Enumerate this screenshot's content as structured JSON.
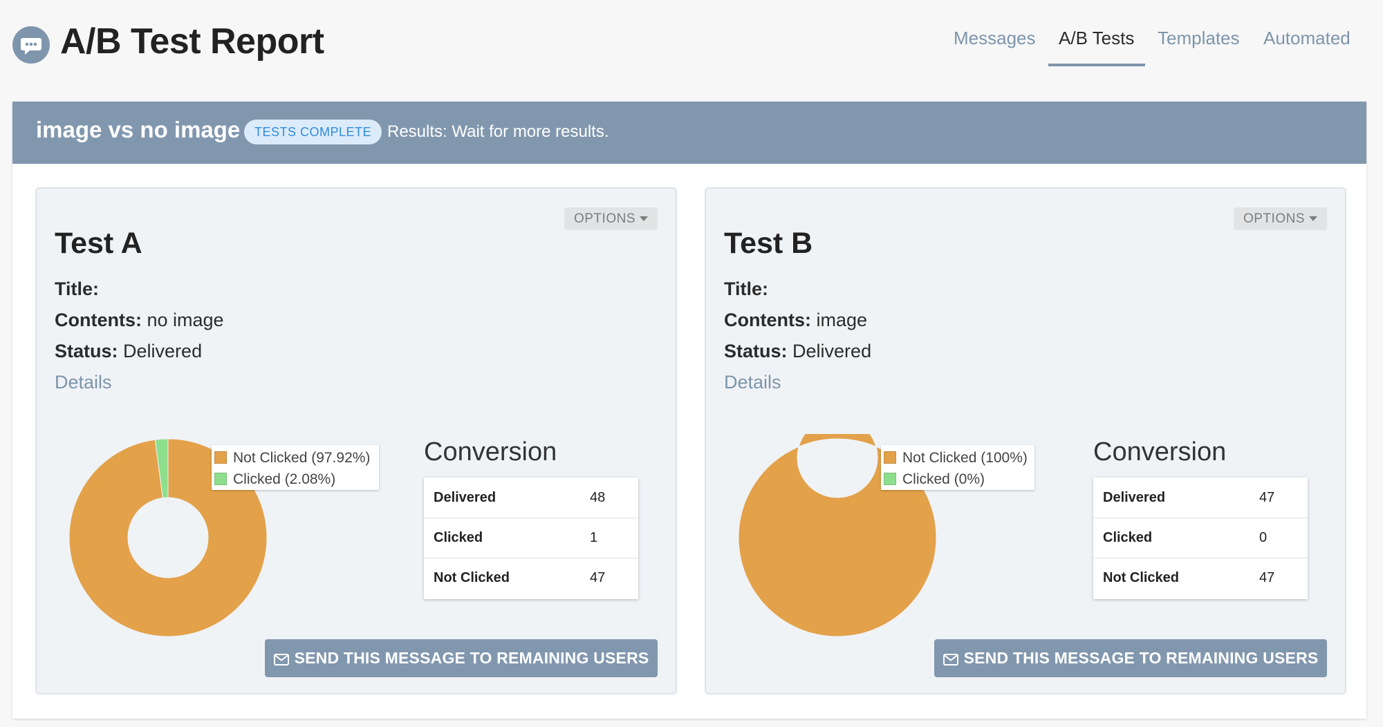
{
  "header": {
    "logo_icon": "chat-bubble-icon",
    "title": "A/B Test Report",
    "nav": [
      {
        "label": "Messages",
        "active": false
      },
      {
        "label": "A/B Tests",
        "active": true
      },
      {
        "label": "Templates",
        "active": false
      },
      {
        "label": "Automated",
        "active": false
      }
    ]
  },
  "test": {
    "name": "image vs no image",
    "status": "TESTS COMPLETE",
    "results": "Results: Wait for more results."
  },
  "variants": [
    {
      "title": "Test A",
      "options_label": "OPTIONS",
      "fields": {
        "title_label": "Title:",
        "title_value": "",
        "contents_label": "Contents:",
        "contents_value": "no image",
        "status_label": "Status:",
        "status_value": "Delivered"
      },
      "details_label": "Details",
      "chart_data": {
        "type": "pie",
        "categories": [
          "Not Clicked",
          "Clicked"
        ],
        "values": [
          47,
          1
        ],
        "legend": [
          "Not Clicked (97.92%)",
          "Clicked (2.08%)"
        ],
        "colors": [
          "#e3a14a",
          "#8ddf8d"
        ]
      },
      "conversion_title": "Conversion",
      "conversion": [
        {
          "label": "Delivered",
          "value": "48"
        },
        {
          "label": "Clicked",
          "value": "1"
        },
        {
          "label": "Not Clicked",
          "value": "47"
        }
      ],
      "send_label": "SEND THIS MESSAGE TO REMAINING USERS"
    },
    {
      "title": "Test B",
      "options_label": "OPTIONS",
      "fields": {
        "title_label": "Title:",
        "title_value": "",
        "contents_label": "Contents:",
        "contents_value": "image",
        "status_label": "Status:",
        "status_value": "Delivered"
      },
      "details_label": "Details",
      "chart_data": {
        "type": "pie",
        "categories": [
          "Not Clicked",
          "Clicked"
        ],
        "values": [
          47,
          0
        ],
        "legend": [
          "Not Clicked (100%)",
          "Clicked (0%)"
        ],
        "colors": [
          "#e3a14a",
          "#8ddf8d"
        ]
      },
      "conversion_title": "Conversion",
      "conversion": [
        {
          "label": "Delivered",
          "value": "47"
        },
        {
          "label": "Clicked",
          "value": "0"
        },
        {
          "label": "Not Clicked",
          "value": "47"
        }
      ],
      "send_label": "SEND THIS MESSAGE TO REMAINING USERS"
    }
  ]
}
